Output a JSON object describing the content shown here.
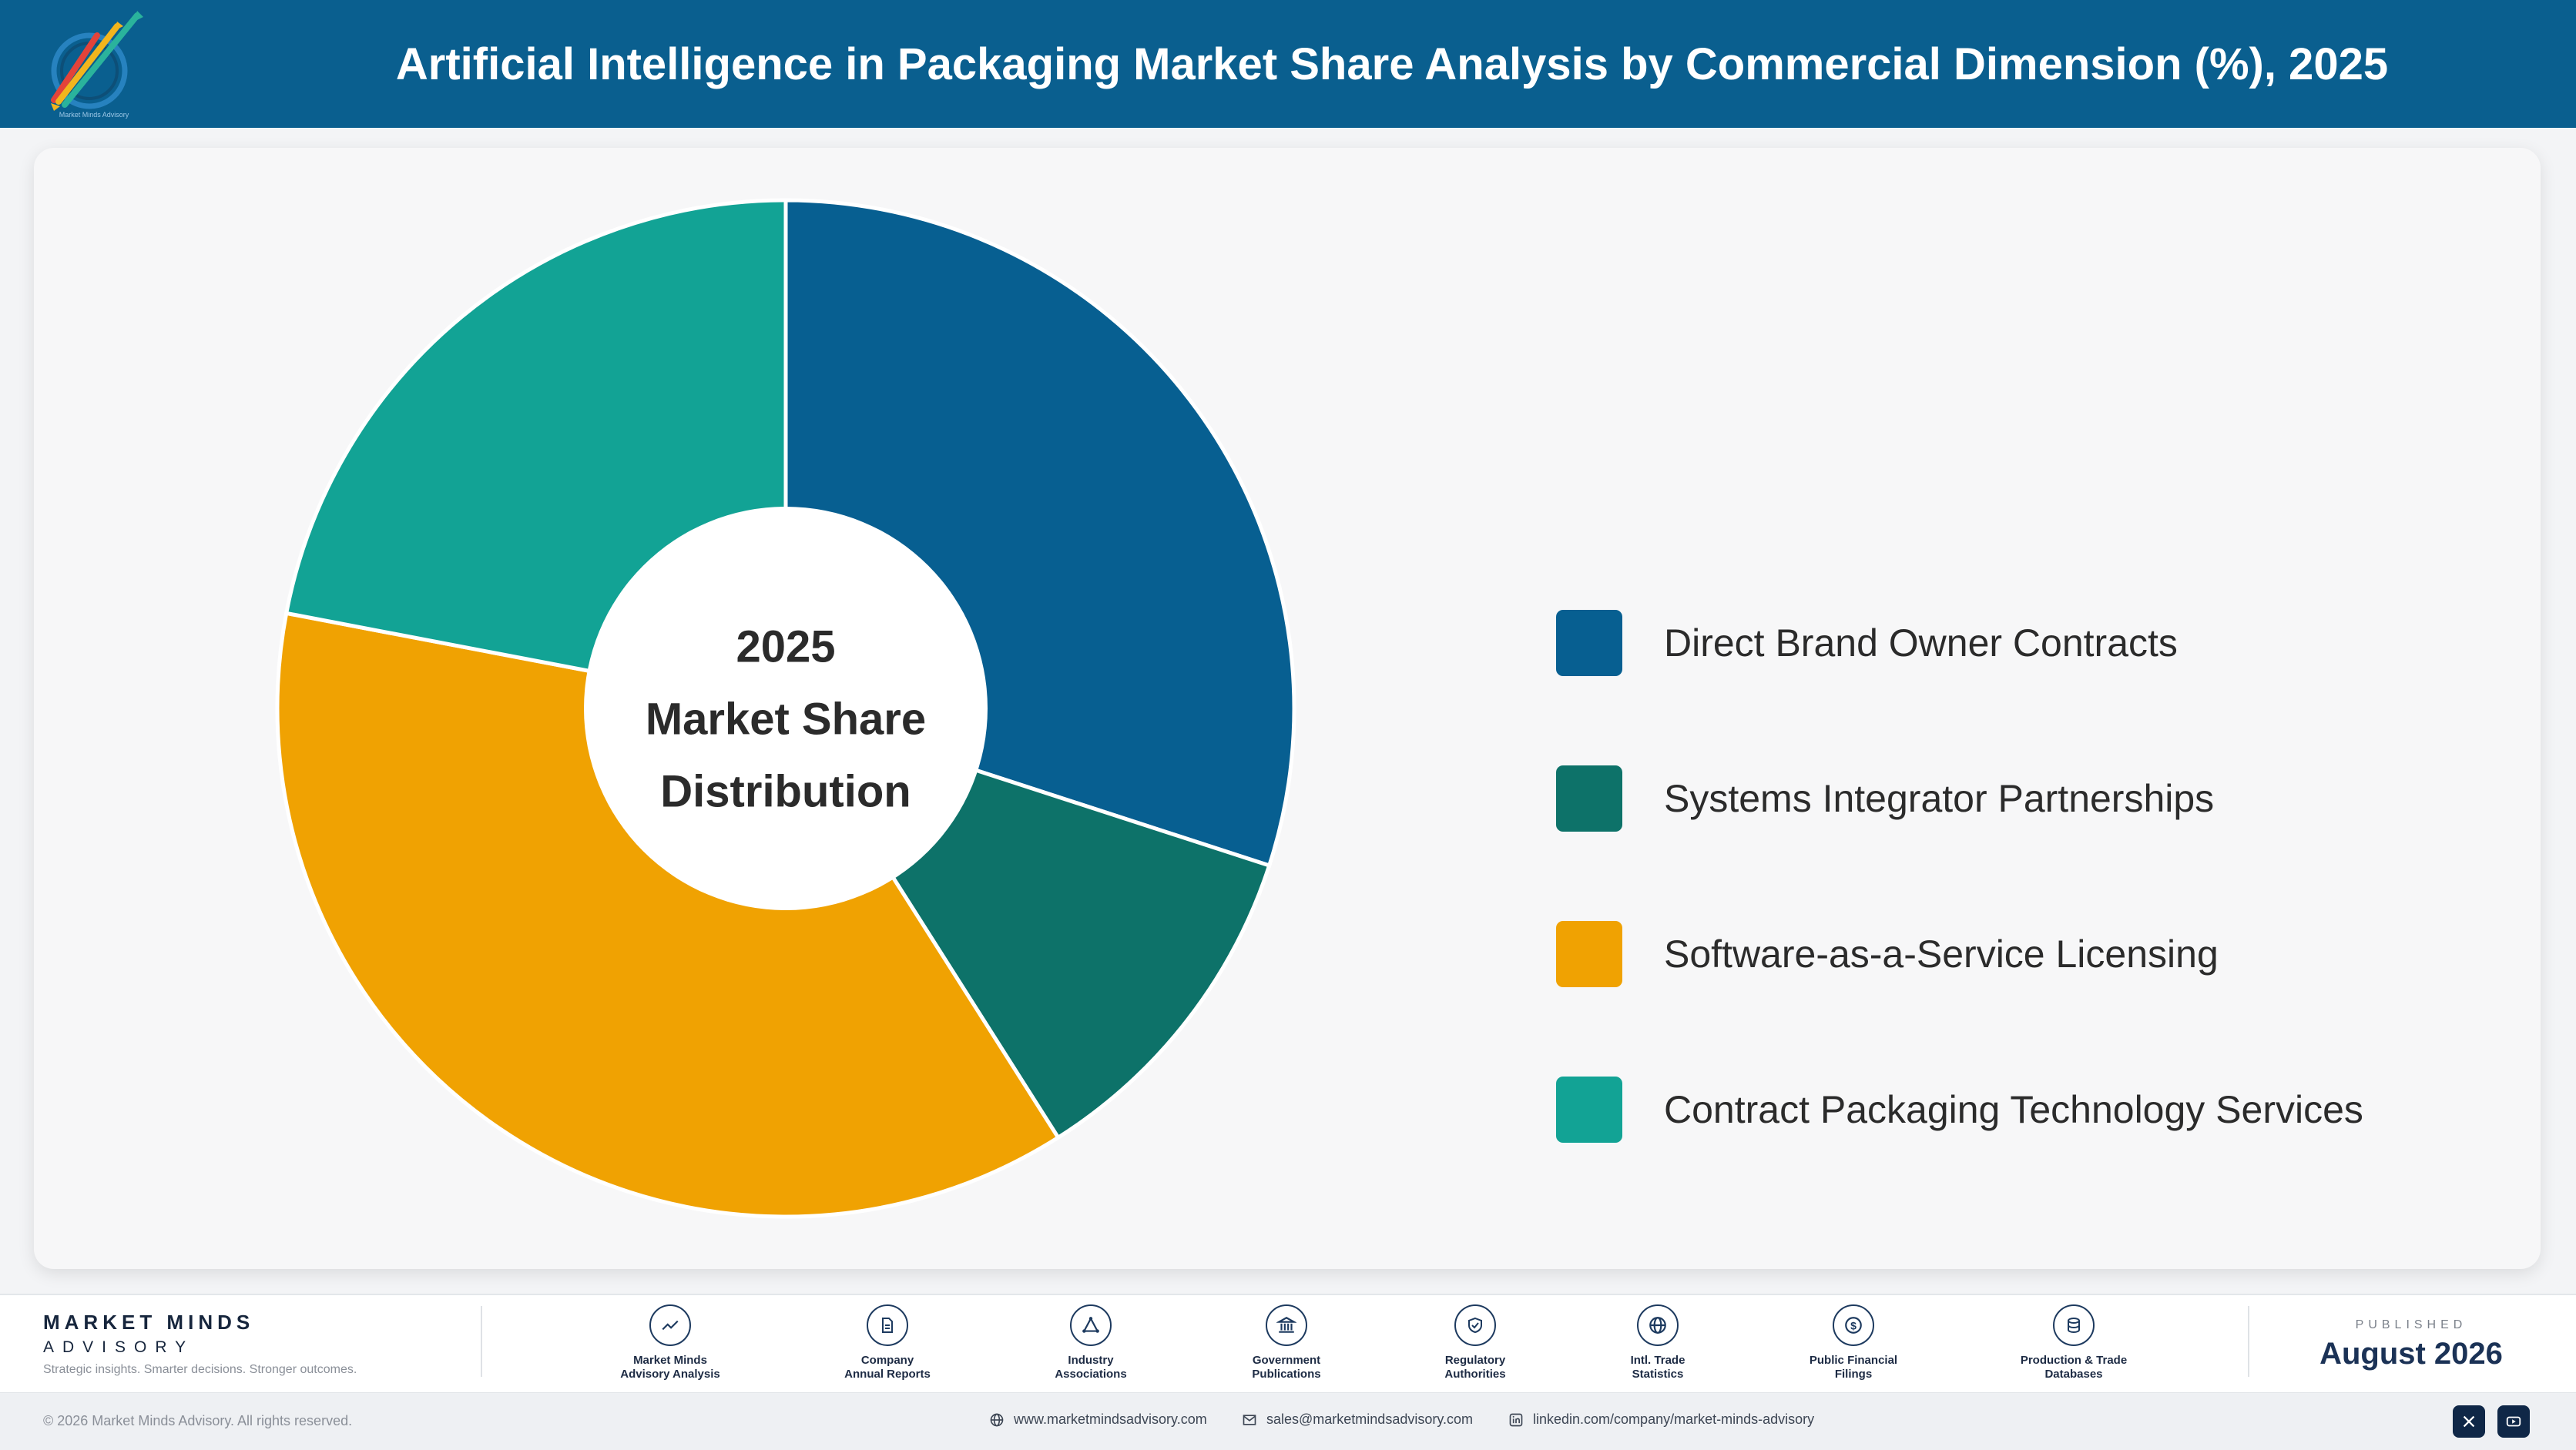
{
  "header": {
    "title": "Artificial Intelligence in Packaging Market Share Analysis by Commercial Dimension (%), 2025",
    "logo_text": "Market Minds Advisory"
  },
  "chart_data": {
    "type": "pie",
    "title": "Artificial Intelligence in Packaging Market Share Analysis by Commercial Dimension (%), 2025",
    "center_label": [
      "2025",
      "Market Share",
      "Distribution"
    ],
    "categories": [
      "Direct Brand Owner Contracts",
      "Systems Integrator Partnerships",
      "Software-as-a-Service Licensing",
      "Contract Packaging Technology Services"
    ],
    "values": [
      30.0,
      11.0,
      37.0,
      22.0
    ],
    "colors": [
      "#075f91",
      "#0d7269",
      "#f0a202",
      "#12a395"
    ],
    "legend_position": "right",
    "donut": true
  },
  "footer": {
    "brand_name": "MARKET MINDS",
    "brand_sub": "ADVISORY",
    "tagline": "Strategic insights. Smarter decisions. Stronger outcomes.",
    "sources": [
      {
        "line1": "Market Minds",
        "line2": "Advisory Analysis",
        "icon": "trend-icon"
      },
      {
        "line1": "Company",
        "line2": "Annual Reports",
        "icon": "document-icon"
      },
      {
        "line1": "Industry",
        "line2": "Associations",
        "icon": "network-icon"
      },
      {
        "line1": "Government",
        "line2": "Publications",
        "icon": "government-icon"
      },
      {
        "line1": "Regulatory",
        "line2": "Authorities",
        "icon": "shield-check-icon"
      },
      {
        "line1": "Intl. Trade",
        "line2": "Statistics",
        "icon": "globe-icon"
      },
      {
        "line1": "Public Financial",
        "line2": "Filings",
        "icon": "dollar-icon"
      },
      {
        "line1": "Production & Trade",
        "line2": "Databases",
        "icon": "database-icon"
      }
    ],
    "published_label": "PUBLISHED",
    "published_date": "August 2026"
  },
  "bottom_bar": {
    "copyright": "© 2026 Market Minds Advisory. All rights reserved.",
    "website": "www.marketmindsadvisory.com",
    "email": "sales@marketmindsadvisory.com",
    "linkedin": "linkedin.com/company/market-minds-advisory",
    "social_icons": [
      "x-icon",
      "youtube-icon"
    ]
  }
}
